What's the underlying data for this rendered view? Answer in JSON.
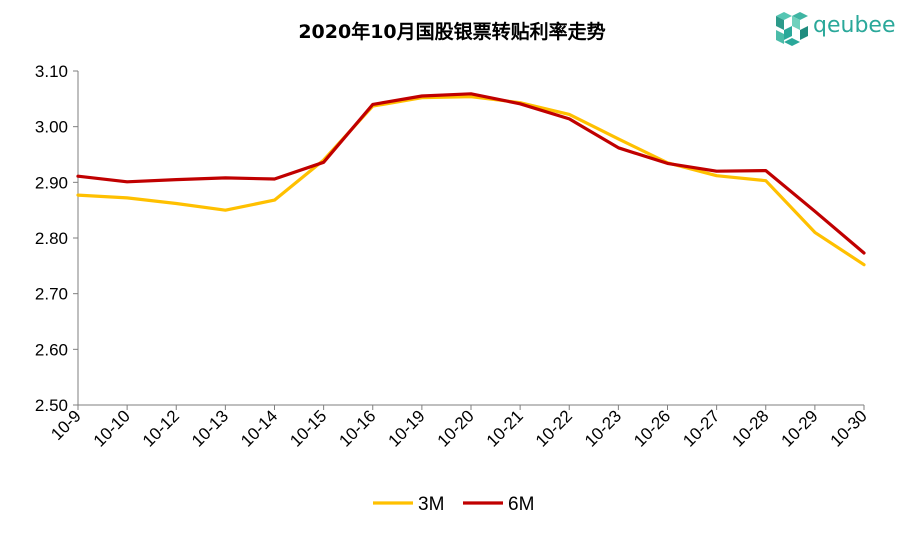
{
  "chart_data": {
    "type": "line",
    "title": "2020年10月国股银票转贴利率走势",
    "xlabel": "",
    "ylabel": "",
    "categories": [
      "10-9",
      "10-10",
      "10-12",
      "10-13",
      "10-14",
      "10-15",
      "10-16",
      "10-19",
      "10-20",
      "10-21",
      "10-22",
      "10-23",
      "10-26",
      "10-27",
      "10-28",
      "10-29",
      "10-30"
    ],
    "ylim": [
      2.5,
      3.1
    ],
    "yticks": [
      "2.50",
      "2.60",
      "2.70",
      "2.80",
      "2.90",
      "3.00",
      "3.10"
    ],
    "grid": false,
    "legend_position": "bottom",
    "series": [
      {
        "name": "3M",
        "color": "#FFC000",
        "values": [
          2.877,
          2.872,
          2.862,
          2.85,
          2.868,
          2.94,
          3.037,
          3.052,
          3.054,
          3.043,
          3.022,
          2.978,
          2.935,
          2.912,
          2.903,
          2.81,
          2.752
        ]
      },
      {
        "name": "6M",
        "color": "#C00000",
        "values": [
          2.911,
          2.901,
          2.905,
          2.908,
          2.906,
          2.936,
          3.04,
          3.055,
          3.059,
          3.041,
          3.014,
          2.962,
          2.934,
          2.92,
          2.921,
          2.848,
          2.773
        ]
      }
    ]
  },
  "logo": {
    "text": "qeubee",
    "color": "#2aa89a",
    "name": "qeubee-logo"
  }
}
